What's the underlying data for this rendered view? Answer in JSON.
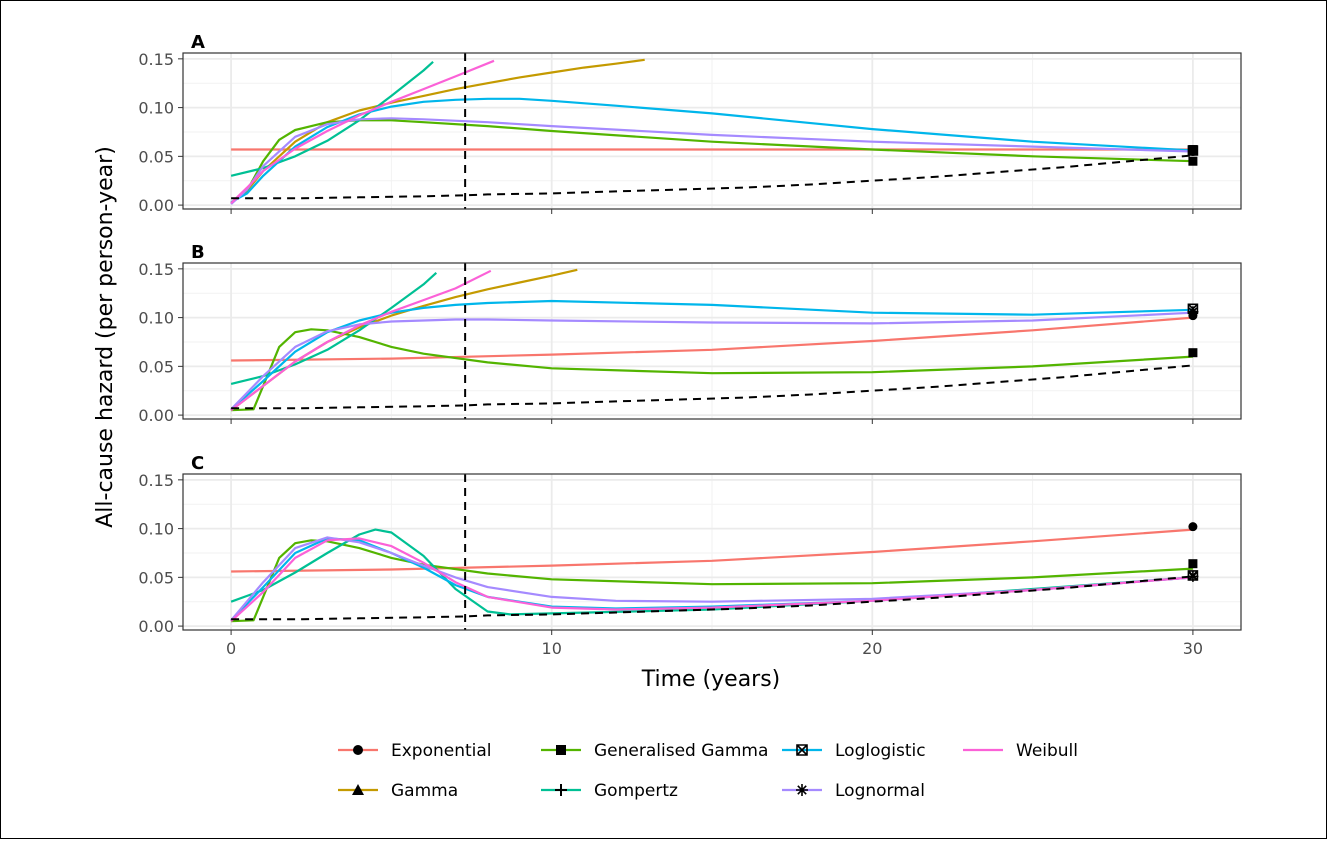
{
  "chart_data": {
    "type": "line",
    "ylabel": "All-cause hazard (per person-year)",
    "xlabel": "Time (years)",
    "xlim": [
      -1.5,
      31.5
    ],
    "ylim": [
      -0.004,
      0.156
    ],
    "x_ticks": [
      0,
      10,
      20,
      30
    ],
    "x_tick_labels": [
      "0",
      "10",
      "20",
      "30"
    ],
    "y_ticks": [
      0,
      0.05,
      0.1,
      0.15
    ],
    "y_tick_labels": [
      "0.00",
      "0.05",
      "0.10",
      "0.15"
    ],
    "grid": true,
    "legend_position": "bottom",
    "vline_x": 7.3,
    "colors": {
      "Exponential": "#F8766D",
      "Gamma": "#C49A00",
      "Generalised Gamma": "#53B400",
      "Gompertz": "#00C094",
      "Loglogistic": "#00B6EB",
      "Lognormal": "#A58AFF",
      "Weibull": "#FB61D7",
      "observed": "#000000"
    },
    "legend": [
      {
        "name": "Exponential",
        "shape": "circle",
        "row": 0,
        "col": 0
      },
      {
        "name": "Generalised Gamma",
        "shape": "square",
        "row": 0,
        "col": 1
      },
      {
        "name": "Loglogistic",
        "shape": "boxx",
        "row": 0,
        "col": 2
      },
      {
        "name": "Weibull",
        "shape": "none",
        "row": 0,
        "col": 3
      },
      {
        "name": "Gamma",
        "shape": "triangle",
        "row": 1,
        "col": 0
      },
      {
        "name": "Gompertz",
        "shape": "plus",
        "row": 1,
        "col": 1
      },
      {
        "name": "Lognormal",
        "shape": "asterisk",
        "row": 1,
        "col": 2
      }
    ],
    "panels": [
      {
        "label": "A",
        "series": [
          {
            "name": "Exponential",
            "x": [
              0,
              30
            ],
            "y": [
              0.057,
              0.057
            ]
          },
          {
            "name": "Gamma",
            "x": [
              0,
              0.5,
              1,
              2,
              3,
              4,
              5,
              6,
              7,
              8,
              9,
              10,
              11,
              12,
              12.9
            ],
            "y": [
              0.002,
              0.015,
              0.035,
              0.065,
              0.085,
              0.097,
              0.105,
              0.112,
              0.119,
              0.125,
              0.131,
              0.136,
              0.141,
              0.145,
              0.149
            ]
          },
          {
            "name": "Generalised Gamma",
            "x": [
              0,
              0.5,
              1,
              1.5,
              2,
              3,
              4,
              5,
              6,
              8,
              10,
              15,
              20,
              25,
              30
            ],
            "y": [
              0.002,
              0.015,
              0.045,
              0.067,
              0.077,
              0.085,
              0.087,
              0.087,
              0.085,
              0.081,
              0.076,
              0.065,
              0.057,
              0.05,
              0.045
            ]
          },
          {
            "name": "Gompertz",
            "x": [
              0,
              1,
              2,
              3,
              4,
              5,
              6,
              6.3
            ],
            "y": [
              0.03,
              0.038,
              0.05,
              0.066,
              0.087,
              0.112,
              0.138,
              0.147
            ]
          },
          {
            "name": "Loglogistic",
            "x": [
              0,
              0.5,
              1,
              2,
              3,
              4,
              5,
              6,
              7,
              8,
              9,
              10,
              12,
              15,
              20,
              25,
              30
            ],
            "y": [
              0.003,
              0.012,
              0.03,
              0.06,
              0.08,
              0.093,
              0.101,
              0.106,
              0.108,
              0.109,
              0.109,
              0.107,
              0.102,
              0.094,
              0.078,
              0.065,
              0.056
            ]
          },
          {
            "name": "Lognormal",
            "x": [
              0,
              0.5,
              1,
              2,
              3,
              4,
              5,
              6,
              8,
              10,
              15,
              20,
              25,
              30
            ],
            "y": [
              0.001,
              0.016,
              0.04,
              0.07,
              0.083,
              0.088,
              0.089,
              0.088,
              0.085,
              0.081,
              0.072,
              0.065,
              0.06,
              0.055
            ]
          },
          {
            "name": "Weibull",
            "x": [
              0,
              0.5,
              1,
              2,
              3,
              4,
              5,
              6,
              7,
              8.2
            ],
            "y": [
              0.002,
              0.018,
              0.035,
              0.058,
              0.076,
              0.092,
              0.106,
              0.119,
              0.132,
              0.148
            ]
          },
          {
            "name": "observed",
            "x": [
              0,
              2,
              4,
              6,
              7.3,
              8,
              10,
              12,
              14,
              16,
              18,
              20,
              22,
              24,
              26,
              28,
              30
            ],
            "y": [
              0.007,
              0.007,
              0.008,
              0.009,
              0.01,
              0.011,
              0.012,
              0.014,
              0.016,
              0.018,
              0.021,
              0.025,
              0.029,
              0.034,
              0.039,
              0.045,
              0.051
            ]
          }
        ],
        "end_markers": [
          {
            "shape": "circle",
            "y": 0.055
          },
          {
            "shape": "square",
            "y": 0.045
          },
          {
            "shape": "boxx",
            "y": 0.056
          },
          {
            "shape": "square",
            "y": 0.057
          }
        ]
      },
      {
        "label": "B",
        "series": [
          {
            "name": "Exponential",
            "x": [
              0,
              5,
              10,
              15,
              20,
              25,
              30
            ],
            "y": [
              0.056,
              0.058,
              0.062,
              0.067,
              0.076,
              0.087,
              0.1
            ]
          },
          {
            "name": "Gamma",
            "x": [
              0,
              1,
              2,
              3,
              4,
              5,
              6,
              7,
              8,
              9,
              10,
              10.8
            ],
            "y": [
              0.005,
              0.03,
              0.055,
              0.075,
              0.09,
              0.102,
              0.112,
              0.121,
              0.129,
              0.136,
              0.143,
              0.149
            ]
          },
          {
            "name": "Generalised Gamma",
            "x": [
              0,
              0.7,
              1,
              1.5,
              2,
              2.5,
              3,
              4,
              5,
              6,
              8,
              10,
              15,
              20,
              25,
              30
            ],
            "y": [
              0.005,
              0.006,
              0.03,
              0.07,
              0.085,
              0.088,
              0.087,
              0.08,
              0.07,
              0.063,
              0.054,
              0.048,
              0.043,
              0.044,
              0.05,
              0.06
            ]
          },
          {
            "name": "Gompertz",
            "x": [
              0,
              1,
              2,
              3,
              4,
              5,
              6,
              6.4
            ],
            "y": [
              0.032,
              0.04,
              0.052,
              0.067,
              0.087,
              0.11,
              0.134,
              0.146
            ]
          },
          {
            "name": "Loglogistic",
            "x": [
              0,
              1,
              2,
              3,
              4,
              5,
              6,
              7,
              8,
              10,
              15,
              20,
              25,
              30
            ],
            "y": [
              0.006,
              0.035,
              0.065,
              0.085,
              0.097,
              0.105,
              0.11,
              0.113,
              0.115,
              0.117,
              0.113,
              0.105,
              0.103,
              0.108
            ]
          },
          {
            "name": "Lognormal",
            "x": [
              0,
              1,
              2,
              3,
              4,
              5,
              6,
              7,
              8,
              10,
              15,
              20,
              25,
              30
            ],
            "y": [
              0.006,
              0.04,
              0.07,
              0.086,
              0.093,
              0.096,
              0.097,
              0.098,
              0.098,
              0.097,
              0.095,
              0.094,
              0.097,
              0.105
            ]
          },
          {
            "name": "Weibull",
            "x": [
              0,
              1,
              2,
              3,
              4,
              5,
              6,
              7,
              8.1
            ],
            "y": [
              0.005,
              0.03,
              0.055,
              0.075,
              0.092,
              0.106,
              0.118,
              0.13,
              0.148
            ]
          },
          {
            "name": "observed",
            "x": [
              0,
              2,
              4,
              6,
              7.3,
              8,
              10,
              12,
              14,
              16,
              18,
              20,
              22,
              24,
              26,
              28,
              30
            ],
            "y": [
              0.007,
              0.007,
              0.008,
              0.009,
              0.01,
              0.011,
              0.012,
              0.014,
              0.016,
              0.018,
              0.021,
              0.025,
              0.029,
              0.034,
              0.039,
              0.045,
              0.051
            ]
          }
        ],
        "end_markers": [
          {
            "shape": "circle",
            "y": 0.102
          },
          {
            "shape": "boxx",
            "y": 0.109
          },
          {
            "shape": "asterisk",
            "y": 0.106
          },
          {
            "shape": "square",
            "y": 0.064
          }
        ]
      },
      {
        "label": "C",
        "series": [
          {
            "name": "Exponential",
            "x": [
              0,
              5,
              10,
              15,
              20,
              25,
              30
            ],
            "y": [
              0.056,
              0.058,
              0.062,
              0.067,
              0.076,
              0.087,
              0.099
            ]
          },
          {
            "name": "Generalised Gamma",
            "x": [
              0,
              0.7,
              1,
              1.5,
              2,
              2.5,
              3,
              4,
              5,
              6,
              8,
              10,
              15,
              20,
              25,
              30
            ],
            "y": [
              0.005,
              0.006,
              0.03,
              0.07,
              0.085,
              0.088,
              0.087,
              0.08,
              0.07,
              0.063,
              0.054,
              0.048,
              0.043,
              0.044,
              0.05,
              0.059
            ]
          },
          {
            "name": "Gompertz",
            "x": [
              0,
              1,
              2,
              3,
              4,
              4.5,
              5,
              6,
              7,
              8,
              8.7,
              10,
              15,
              20,
              25,
              30
            ],
            "y": [
              0.025,
              0.037,
              0.055,
              0.075,
              0.094,
              0.099,
              0.096,
              0.072,
              0.038,
              0.015,
              0.012,
              0.013,
              0.017,
              0.026,
              0.038,
              0.05
            ]
          },
          {
            "name": "Loglogistic",
            "x": [
              0,
              1,
              2,
              3,
              4,
              5,
              6,
              7,
              8,
              10,
              12,
              15,
              20,
              25,
              30
            ],
            "y": [
              0.006,
              0.04,
              0.075,
              0.09,
              0.088,
              0.075,
              0.06,
              0.042,
              0.03,
              0.02,
              0.018,
              0.02,
              0.026,
              0.037,
              0.05
            ]
          },
          {
            "name": "Lognormal",
            "x": [
              0,
              1,
              2,
              3,
              4,
              5,
              6,
              7,
              8,
              10,
              12,
              15,
              20,
              25,
              30
            ],
            "y": [
              0.006,
              0.045,
              0.08,
              0.091,
              0.086,
              0.075,
              0.062,
              0.05,
              0.04,
              0.03,
              0.026,
              0.025,
              0.028,
              0.037,
              0.05
            ]
          },
          {
            "name": "Weibull",
            "x": [
              0,
              1,
              2,
              3,
              4,
              5,
              6,
              7,
              8,
              10,
              12,
              15,
              20,
              25,
              30
            ],
            "y": [
              0.005,
              0.035,
              0.07,
              0.088,
              0.09,
              0.082,
              0.065,
              0.045,
              0.03,
              0.019,
              0.017,
              0.019,
              0.026,
              0.037,
              0.05
            ]
          },
          {
            "name": "observed",
            "x": [
              0,
              2,
              4,
              6,
              7.3,
              8,
              10,
              12,
              14,
              16,
              18,
              20,
              22,
              24,
              26,
              28,
              30
            ],
            "y": [
              0.007,
              0.007,
              0.008,
              0.009,
              0.01,
              0.011,
              0.012,
              0.014,
              0.016,
              0.018,
              0.021,
              0.025,
              0.029,
              0.034,
              0.039,
              0.045,
              0.051
            ]
          }
        ],
        "end_markers": [
          {
            "shape": "circle",
            "y": 0.102
          },
          {
            "shape": "square",
            "y": 0.064
          },
          {
            "shape": "boxx",
            "y": 0.052
          },
          {
            "shape": "asterisk",
            "y": 0.051
          }
        ]
      }
    ]
  }
}
